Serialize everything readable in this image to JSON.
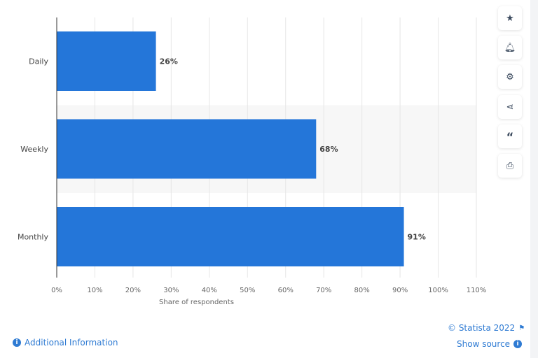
{
  "chart_data": {
    "type": "bar",
    "orientation": "horizontal",
    "categories": [
      "Daily",
      "Weekly",
      "Monthly"
    ],
    "values": [
      26,
      68,
      91
    ],
    "data_labels": [
      "26%",
      "68%",
      "91%"
    ],
    "xlabel": "Share of respondents",
    "xlim": [
      0,
      110
    ],
    "ticks": [
      "0%",
      "10%",
      "20%",
      "30%",
      "40%",
      "50%",
      "60%",
      "70%",
      "80%",
      "90%",
      "100%",
      "110%"
    ],
    "grid": true,
    "bar_color": "#2476d9"
  },
  "toolbar": {
    "icons": [
      "star-icon",
      "bell-icon",
      "gear-icon",
      "share-icon",
      "quote-icon",
      "print-icon"
    ]
  },
  "footer": {
    "copyright": "© Statista 2022",
    "additional": "Additional Information",
    "source": "Show source"
  }
}
